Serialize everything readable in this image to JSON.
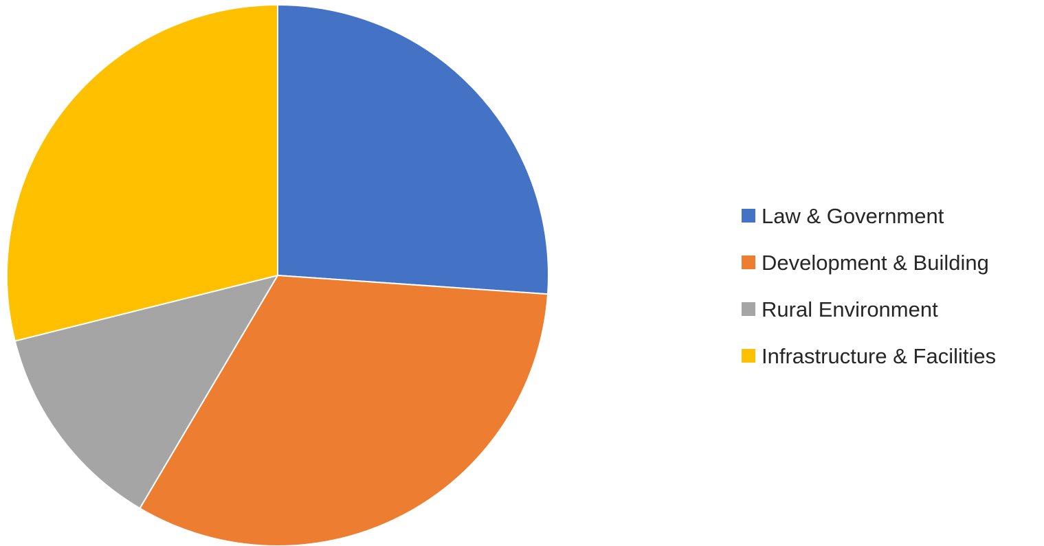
{
  "chart_data": {
    "type": "pie",
    "title": "",
    "categories": [
      "Law & Government",
      "Development & Building",
      "Rural Environment",
      "Infrastructure & Facilities"
    ],
    "values": [
      26.1,
      32.4,
      12.6,
      28.9
    ],
    "unit": "percent share (estimated)",
    "start_angle_deg": 0,
    "direction": "clockwise",
    "colors": [
      "#4472C4",
      "#ED7D31",
      "#A5A5A5",
      "#FFC000"
    ],
    "legend_position": "right"
  }
}
